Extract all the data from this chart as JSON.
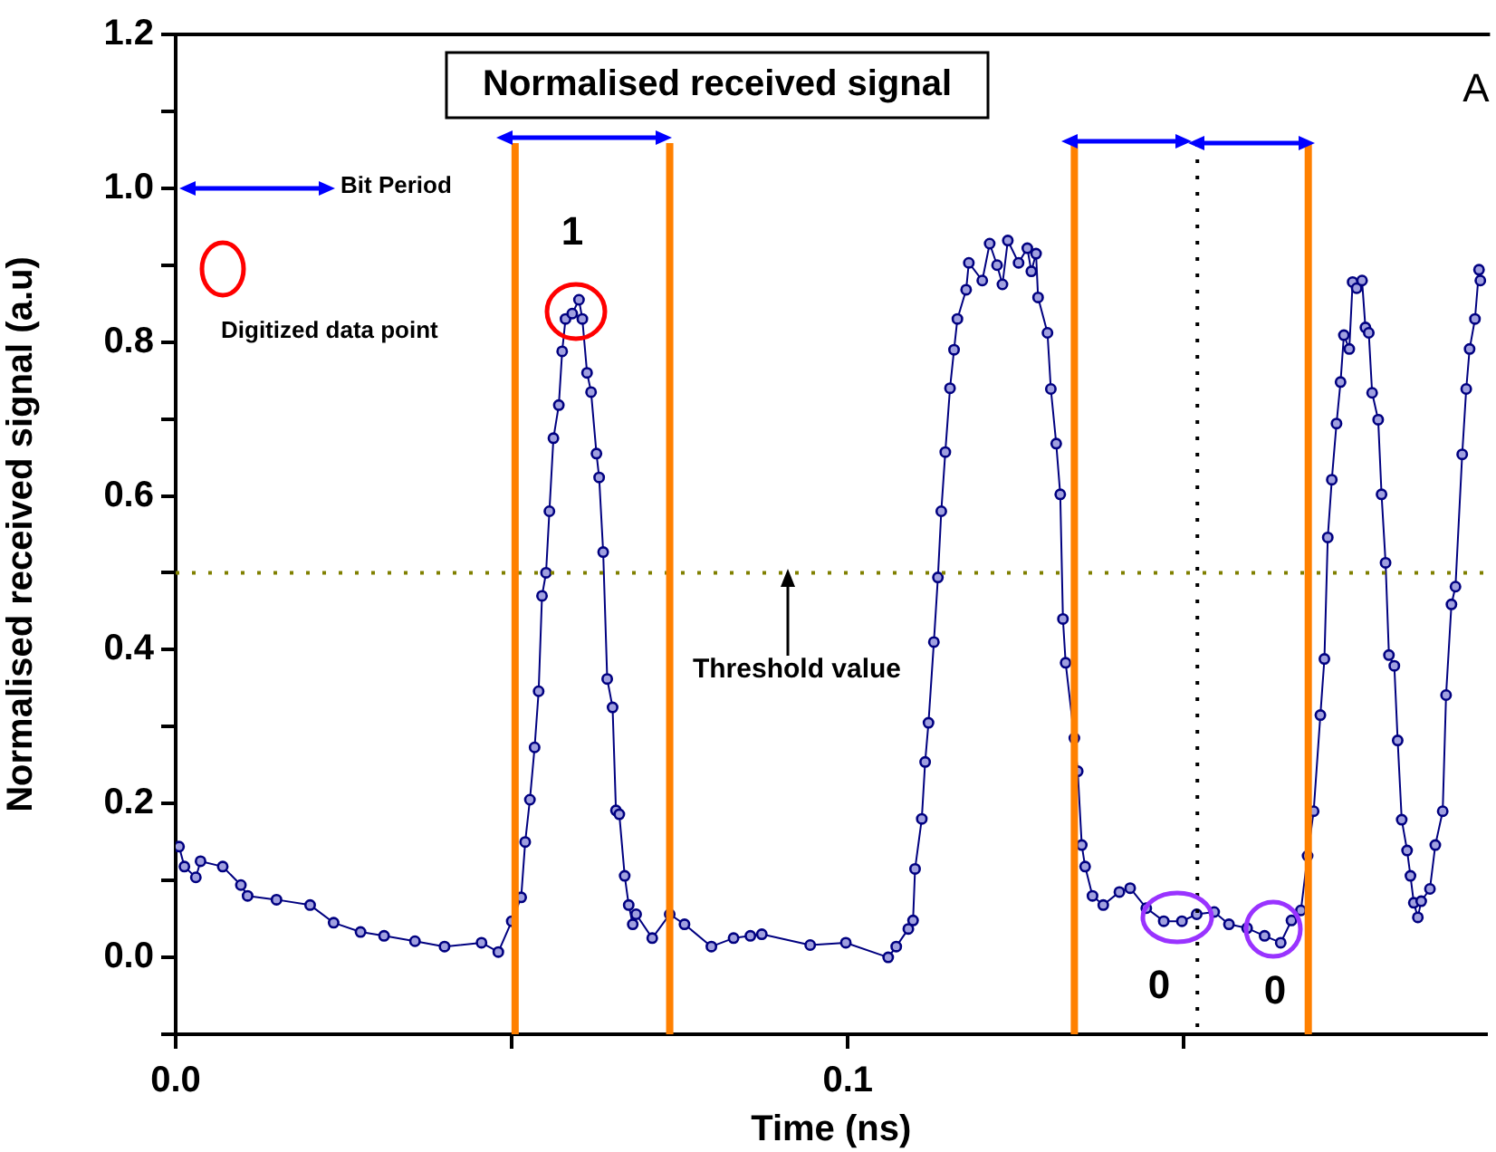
{
  "chart_data": {
    "type": "line",
    "title": "Normalised received signal",
    "xlabel": "Time (ns)",
    "ylabel": "Normalised received signal (a.u)",
    "xlim": [
      0,
      0.195
    ],
    "ylim": [
      -0.1,
      1.2
    ],
    "xticks": [
      {
        "value": 0,
        "label": "0.0"
      },
      {
        "value": 0.05,
        "label": null
      },
      {
        "value": 0.1,
        "label": "0.1"
      },
      {
        "value": 0.15,
        "label": null
      }
    ],
    "yticks": [
      {
        "value": -0.1,
        "label": null
      },
      {
        "value": 0,
        "label": "0.0"
      },
      {
        "value": 0.1,
        "label": null
      },
      {
        "value": 0.2,
        "label": "0.2"
      },
      {
        "value": 0.3,
        "label": null
      },
      {
        "value": 0.4,
        "label": "0.4"
      },
      {
        "value": 0.5,
        "label": null
      },
      {
        "value": 0.6,
        "label": "0.6"
      },
      {
        "value": 0.7,
        "label": null
      },
      {
        "value": 0.8,
        "label": "0.8"
      },
      {
        "value": 0.9,
        "label": null
      },
      {
        "value": 1,
        "label": "1.0"
      },
      {
        "value": 1.1,
        "label": null
      },
      {
        "value": 1.2,
        "label": "1.2"
      }
    ],
    "grid": false,
    "legend": false,
    "marker": "circle",
    "line_style": "solid",
    "series": [
      {
        "color": "#000080",
        "x": [
          0.0005,
          0.0013,
          0.003,
          0.0037,
          0.007,
          0.0097,
          0.0107,
          0.015,
          0.02,
          0.0235,
          0.0275,
          0.031,
          0.0356,
          0.04,
          0.0455,
          0.048,
          0.05,
          0.0514,
          0.052,
          0.0527,
          0.0534,
          0.054,
          0.0545,
          0.0551,
          0.0556,
          0.0562,
          0.057,
          0.0575,
          0.058,
          0.059,
          0.06,
          0.0605,
          0.0612,
          0.0618,
          0.0626,
          0.063,
          0.0636,
          0.0642,
          0.065,
          0.0655,
          0.066,
          0.0668,
          0.0674,
          0.068,
          0.0685,
          0.0709,
          0.0735,
          0.0757,
          0.0797,
          0.083,
          0.0855,
          0.0872,
          0.0944,
          0.0997,
          0.106,
          0.1072,
          0.109,
          0.1097,
          0.11,
          0.111,
          0.1115,
          0.112,
          0.1128,
          0.1134,
          0.1139,
          0.1145,
          0.1152,
          0.1158,
          0.1163,
          0.1176,
          0.118,
          0.12,
          0.1211,
          0.1222,
          0.123,
          0.1238,
          0.1254,
          0.1267,
          0.1273,
          0.128,
          0.1283,
          0.1297,
          0.1302,
          0.131,
          0.1316,
          0.132,
          0.1324,
          0.1337,
          0.1342,
          0.1348,
          0.1353,
          0.1364,
          0.138,
          0.1404,
          0.142,
          0.1444,
          0.147,
          0.1497,
          0.1519,
          0.1545,
          0.1567,
          0.1594,
          0.162,
          0.1644,
          0.166,
          0.1674,
          0.1684,
          0.1693,
          0.1703,
          0.1709,
          0.1714,
          0.172,
          0.1727,
          0.1733,
          0.1738,
          0.1746,
          0.1751,
          0.1757,
          0.1765,
          0.177,
          0.1775,
          0.178,
          0.1789,
          0.1794,
          0.18,
          0.1805,
          0.1813,
          0.1818,
          0.1824,
          0.1832,
          0.1837,
          0.1842,
          0.1848,
          0.1853,
          0.1866,
          0.1874,
          0.1885,
          0.189,
          0.1898,
          0.1904,
          0.1914,
          0.192,
          0.1925,
          0.1933,
          0.1939,
          0.1941
        ],
        "values": [
          0.144,
          0.118,
          0.104,
          0.125,
          0.118,
          0.094,
          0.08,
          0.075,
          0.068,
          0.045,
          0.033,
          0.028,
          0.021,
          0.014,
          0.019,
          0.007,
          0.047,
          0.078,
          0.15,
          0.205,
          0.273,
          0.346,
          0.47,
          0.5,
          0.58,
          0.675,
          0.718,
          0.788,
          0.83,
          0.837,
          0.855,
          0.83,
          0.76,
          0.735,
          0.655,
          0.624,
          0.527,
          0.362,
          0.325,
          0.191,
          0.186,
          0.106,
          0.068,
          0.043,
          0.056,
          0.025,
          0.056,
          0.043,
          0.014,
          0.025,
          0.028,
          0.03,
          0.016,
          0.019,
          0.0,
          0.014,
          0.037,
          0.048,
          0.115,
          0.18,
          0.254,
          0.305,
          0.41,
          0.494,
          0.58,
          0.657,
          0.74,
          0.79,
          0.83,
          0.868,
          0.903,
          0.88,
          0.928,
          0.9,
          0.875,
          0.932,
          0.903,
          0.922,
          0.892,
          0.915,
          0.858,
          0.812,
          0.739,
          0.668,
          0.602,
          0.44,
          0.383,
          0.285,
          0.242,
          0.146,
          0.118,
          0.08,
          0.068,
          0.085,
          0.09,
          0.064,
          0.047,
          0.047,
          0.056,
          0.059,
          0.043,
          0.038,
          0.028,
          0.019,
          0.048,
          0.061,
          0.132,
          0.19,
          0.315,
          0.388,
          0.546,
          0.621,
          0.694,
          0.748,
          0.809,
          0.791,
          0.878,
          0.87,
          0.88,
          0.819,
          0.812,
          0.734,
          0.699,
          0.602,
          0.513,
          0.393,
          0.379,
          0.282,
          0.179,
          0.139,
          0.106,
          0.071,
          0.052,
          0.073,
          0.089,
          0.146,
          0.19,
          0.341,
          0.459,
          0.482,
          0.654,
          0.739,
          0.791,
          0.83,
          0.894,
          0.88
        ]
      }
    ],
    "ref_lines": [
      {
        "axis": "y",
        "value": 0.5,
        "color": "#808000",
        "line_style": "dotted"
      },
      {
        "axis": "x",
        "value": 0.0505,
        "color": "#ff8000",
        "line_style": "solid"
      },
      {
        "axis": "x",
        "value": 0.0735,
        "color": "#ff8000",
        "line_style": "solid"
      },
      {
        "axis": "x",
        "value": 0.1337,
        "color": "#ff8000",
        "line_style": "solid"
      },
      {
        "axis": "x",
        "value": 0.1685,
        "color": "#ff8000",
        "line_style": "solid"
      },
      {
        "axis": "x",
        "value": 0.152,
        "color": "#000000",
        "line_style": "dotted"
      }
    ],
    "annotations": [
      "A",
      "Bit Period",
      "Digitized data point",
      "1",
      "Threshold value",
      "0",
      "0"
    ]
  }
}
